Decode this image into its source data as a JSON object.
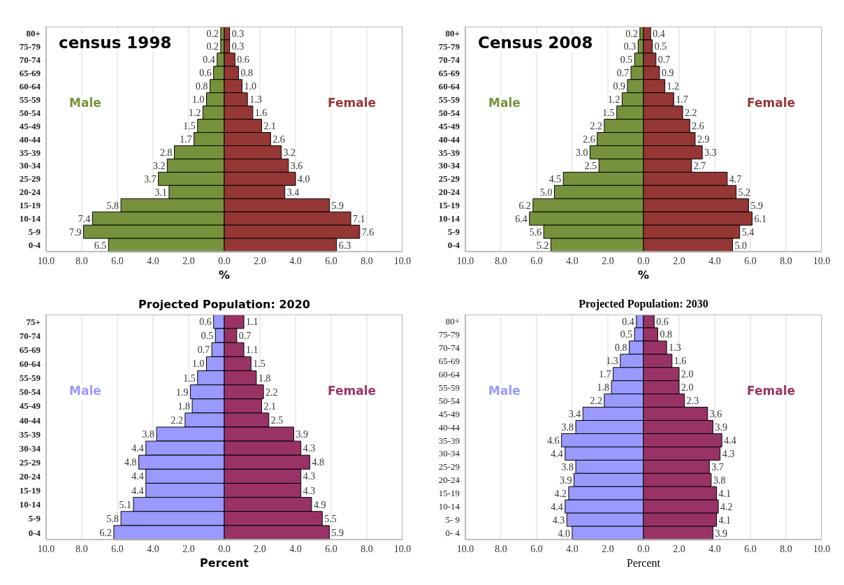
{
  "chart_data": [
    {
      "type": "bar",
      "orientation": "horizontal",
      "title": "census 1998",
      "xlabel": "%",
      "categories": [
        "80+",
        "75-79",
        "70-74",
        "65-69",
        "60-64",
        "55-59",
        "50-54",
        "45-49",
        "40-44",
        "35-39",
        "30-34",
        "25-29",
        "20-24",
        "15-19",
        "10-14",
        "5-9",
        "0-4"
      ],
      "series": [
        {
          "name": "Male",
          "color": "#76923c",
          "values": [
            0.2,
            0.2,
            0.4,
            0.6,
            0.8,
            1.0,
            1.2,
            1.5,
            1.7,
            2.8,
            3.2,
            3.7,
            3.1,
            5.8,
            7.4,
            7.9,
            6.5
          ],
          "base": [
            -0.2,
            -0.2,
            -0.4,
            -0.6,
            -0.8,
            -1.0,
            -1.2,
            -1.5,
            -1.7,
            -2.8,
            -3.2,
            -3.7,
            -3.1,
            -5.8,
            -7.4,
            -7.9,
            -6.5
          ],
          "value_labels": [
            "0.2",
            "0.2",
            "0.4",
            "0.6",
            "0.8",
            "1.0",
            "1.2",
            "1.5",
            "1.7",
            "2.8",
            "3.2",
            "3.7",
            "3.1",
            "5.8",
            "7.4",
            "7.9",
            "6.5"
          ]
        },
        {
          "name": "Female",
          "color": "#953735",
          "values": [
            0.3,
            0.3,
            0.6,
            0.8,
            1.0,
            1.3,
            1.6,
            2.1,
            2.6,
            3.2,
            3.6,
            4.0,
            3.4,
            5.9,
            7.1,
            7.6,
            6.3
          ],
          "value_labels": [
            "0.3",
            "0.3",
            "0.6",
            "0.8",
            "1.0",
            "1.3",
            "1.6",
            "2.1",
            "2.6",
            "3.2",
            "3.6",
            "4.0",
            "3.4",
            "5.9",
            "7.1",
            "7.6",
            "6.3"
          ]
        }
      ],
      "xlim": [
        -10,
        10
      ],
      "xticks": [
        {
          "value": -10,
          "label": "10.0"
        },
        {
          "value": -8,
          "label": "8.0"
        },
        {
          "value": -6,
          "label": "6.0"
        },
        {
          "value": -4,
          "label": "4.0"
        },
        {
          "value": -2,
          "label": "2.0"
        },
        {
          "value": 0,
          "label": "0.0"
        },
        {
          "value": 2,
          "label": "2.0"
        },
        {
          "value": 4,
          "label": "4.0"
        },
        {
          "value": 6,
          "label": "6.0"
        },
        {
          "value": 8,
          "label": "8.0"
        },
        {
          "value": 10,
          "label": "10.0"
        }
      ],
      "grid": "x",
      "legend": false
    },
    {
      "type": "bar",
      "orientation": "horizontal",
      "title": "Census 2008",
      "xlabel": "%",
      "categories": [
        "80+",
        "75-79",
        "70-74",
        "65-69",
        "60-64",
        "55-59",
        "50-54",
        "45-49",
        "40-44",
        "35-39",
        "30-34",
        "25-29",
        "20-24",
        "15-19",
        "10-14",
        "5-9",
        "0-4"
      ],
      "series": [
        {
          "name": "Male",
          "color": "#76923c",
          "values": [
            0.2,
            0.3,
            0.5,
            0.7,
            0.9,
            1.2,
            1.5,
            2.2,
            2.6,
            3.0,
            2.5,
            4.5,
            5.0,
            6.2,
            6.4,
            5.6,
            5.2
          ],
          "base": [
            -0.2,
            -0.3,
            -0.5,
            -0.7,
            -0.9,
            -1.2,
            -1.5,
            -2.2,
            -2.6,
            -3.0,
            -2.5,
            -4.5,
            -5.0,
            -6.2,
            -6.4,
            -5.6,
            -5.2
          ],
          "value_labels": [
            "0.2",
            "0.3",
            "0.5",
            "0.7",
            "0.9",
            "1.2",
            "1.5",
            "2.2",
            "2.6",
            "3.0",
            "2.5",
            "4.5",
            "5.0",
            "6.2",
            "6.4",
            "5.6",
            "5.2"
          ]
        },
        {
          "name": "Female",
          "color": "#953735",
          "values": [
            0.4,
            0.5,
            0.7,
            0.9,
            1.2,
            1.7,
            2.2,
            2.6,
            2.9,
            3.3,
            2.7,
            4.7,
            5.2,
            5.9,
            6.1,
            5.4,
            5.0
          ],
          "value_labels": [
            "0.4",
            "0.5",
            "0.7",
            "0.9",
            "1.2",
            "1.7",
            "2.2",
            "2.6",
            "2.9",
            "3.3",
            "2.7",
            "4.7",
            "5.2",
            "5.9",
            "6.1",
            "5.4",
            "5.0"
          ]
        }
      ],
      "xlim": [
        -10,
        10
      ],
      "xticks": [
        {
          "value": -10,
          "label": "10.0"
        },
        {
          "value": -8,
          "label": "8.0"
        },
        {
          "value": -6,
          "label": "6.0"
        },
        {
          "value": -4,
          "label": "4.0"
        },
        {
          "value": -2,
          "label": "2.0"
        },
        {
          "value": 0,
          "label": "0.0"
        },
        {
          "value": 2,
          "label": "2.0"
        },
        {
          "value": 4,
          "label": "4.0"
        },
        {
          "value": 6,
          "label": "6.0"
        },
        {
          "value": 8,
          "label": "8.0"
        },
        {
          "value": 10,
          "label": "10.0"
        }
      ],
      "grid": "x",
      "legend": false
    },
    {
      "type": "bar",
      "orientation": "horizontal",
      "title": "Projected Population: 2020",
      "xlabel": "Percent",
      "categories": [
        "75+",
        "70-74",
        "65-69",
        "60-64",
        "55-59",
        "50-54",
        "45-49",
        "40-44",
        "35-39",
        "30-34",
        "25-29",
        "20-24",
        "15-19",
        "10-14",
        "5-9",
        "0-4"
      ],
      "series": [
        {
          "name": "Male",
          "color": "#9999ff",
          "values": [
            0.6,
            0.5,
            0.7,
            1.0,
            1.5,
            1.9,
            1.8,
            2.2,
            3.8,
            4.4,
            4.8,
            4.4,
            4.4,
            5.1,
            5.8,
            6.2
          ],
          "base": [
            -0.6,
            -0.5,
            -0.7,
            -1.0,
            -1.5,
            -1.9,
            -1.8,
            -2.2,
            -3.8,
            -4.4,
            -4.8,
            -4.4,
            -4.4,
            -5.1,
            -5.8,
            -6.2
          ],
          "value_labels": [
            "0.6",
            "0.5",
            "0.7",
            "1.0",
            "1.5",
            "1.9",
            "1.8",
            "2.2",
            "3.8",
            "4.4",
            "4.8",
            "4.4",
            "4.4",
            "5.1",
            "5.8",
            "6.2"
          ]
        },
        {
          "name": "Female",
          "color": "#993366",
          "values": [
            1.1,
            0.7,
            1.1,
            1.5,
            1.8,
            2.2,
            2.1,
            2.5,
            3.9,
            4.3,
            4.8,
            4.3,
            4.3,
            4.9,
            5.5,
            5.9
          ],
          "value_labels": [
            "1.1",
            "0.7",
            "1.1",
            "1.5",
            "1.8",
            "2.2",
            "2.1",
            "2.5",
            "3.9",
            "4.3",
            "4.8",
            "4.3",
            "4.3",
            "4.9",
            "5.5",
            "5.9"
          ]
        }
      ],
      "xlim": [
        -10,
        10
      ],
      "xticks": [
        {
          "value": -10,
          "label": "10.0"
        },
        {
          "value": -8,
          "label": "8.0"
        },
        {
          "value": -6,
          "label": "6.0"
        },
        {
          "value": -4,
          "label": "4.0"
        },
        {
          "value": -2,
          "label": "2.0"
        },
        {
          "value": 0,
          "label": "0.0"
        },
        {
          "value": 2,
          "label": "2.0"
        },
        {
          "value": 4,
          "label": "4.0"
        },
        {
          "value": 6,
          "label": "6.0"
        },
        {
          "value": 8,
          "label": "8.0"
        },
        {
          "value": 10,
          "label": "10.0"
        }
      ],
      "grid": "x",
      "legend": false
    },
    {
      "type": "bar",
      "orientation": "horizontal",
      "title": "Projected Population: 2030",
      "xlabel": "Percent",
      "categories": [
        "80+",
        "75-79",
        "70-74",
        "65-69",
        "60-64",
        "55-59",
        "50-54",
        "45-49",
        "40-44",
        "35-39",
        "30-34",
        "25-29",
        "20-24",
        "15-19",
        "10-14",
        "5- 9",
        "0- 4"
      ],
      "series": [
        {
          "name": "Male",
          "color": "#9999ff",
          "values": [
            0.4,
            0.5,
            0.8,
            1.3,
            1.7,
            1.8,
            2.2,
            3.4,
            3.8,
            4.6,
            4.4,
            3.8,
            3.9,
            4.2,
            4.4,
            4.3,
            4.0
          ],
          "base": [
            -0.4,
            -0.5,
            -0.8,
            -1.3,
            -1.7,
            -1.8,
            -2.2,
            -3.4,
            -3.8,
            -4.6,
            -4.4,
            -3.8,
            -3.9,
            -4.2,
            -4.4,
            -4.3,
            -4.0
          ],
          "value_labels": [
            "0.4",
            "0.5",
            "0.8",
            "1.3",
            "1.7",
            "1.8",
            "2.2",
            "3.4",
            "3.8",
            "4.6",
            "4.4",
            "3.8",
            "3.9",
            "4.2",
            "4.4",
            "4.3",
            "4.0"
          ]
        },
        {
          "name": "Female",
          "color": "#993366",
          "values": [
            0.6,
            0.8,
            1.3,
            1.6,
            2.0,
            2.0,
            2.3,
            3.6,
            3.9,
            4.4,
            4.3,
            3.7,
            3.8,
            4.1,
            4.2,
            4.1,
            3.9
          ],
          "value_labels": [
            "0.6",
            "0.8",
            "1.3",
            "1.6",
            "2.0",
            "2.0",
            "2.3",
            "3.6",
            "3.9",
            "4.4",
            "4.3",
            "3.7",
            "3.8",
            "4.1",
            "4.2",
            "4.1",
            "3.9"
          ]
        }
      ],
      "xlim": [
        -10,
        10
      ],
      "xticks": [
        {
          "value": -10,
          "label": "10.0"
        },
        {
          "value": -8,
          "label": "8.0"
        },
        {
          "value": -6,
          "label": "6.0"
        },
        {
          "value": -4,
          "label": "4.0"
        },
        {
          "value": -2,
          "label": "2.0"
        },
        {
          "value": 0,
          "label": "0.0"
        },
        {
          "value": 2,
          "label": "2.0"
        },
        {
          "value": 4,
          "label": "4.0"
        },
        {
          "value": 6,
          "label": "6.0"
        },
        {
          "value": 8,
          "label": "8.0"
        },
        {
          "value": 10,
          "label": "10.0"
        }
      ],
      "grid": "x",
      "legend": false
    }
  ]
}
